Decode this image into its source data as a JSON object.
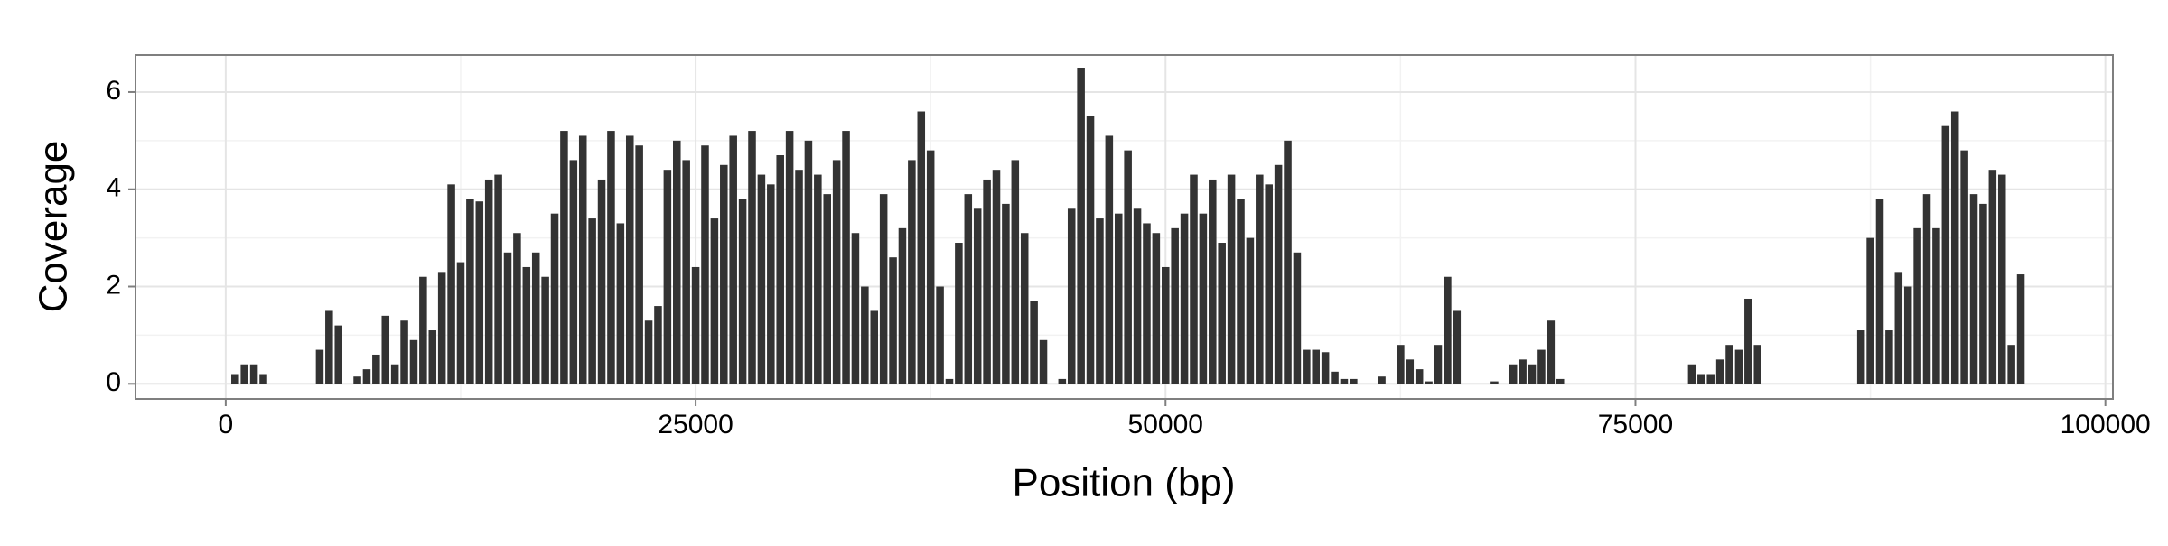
{
  "chart_data": {
    "type": "bar",
    "x_label": "Position (bp)",
    "y_label": "Coverage",
    "color": "#333333",
    "grid": true,
    "xlim": [
      -4800,
      100400
    ],
    "ylim": [
      -0.31,
      6.76
    ],
    "xticks": [
      0,
      25000,
      50000,
      75000,
      100000
    ],
    "yticks": [
      0,
      2,
      4,
      6
    ],
    "x": [
      500,
      1000,
      1500,
      2000,
      5000,
      5500,
      6000,
      7000,
      7500,
      8000,
      8500,
      9000,
      9500,
      10000,
      10500,
      11000,
      11500,
      12000,
      12500,
      13000,
      13500,
      14000,
      14500,
      15000,
      15500,
      16000,
      16500,
      17000,
      17500,
      18000,
      18500,
      19000,
      19500,
      20000,
      20500,
      21000,
      21500,
      22000,
      22500,
      23000,
      23500,
      24000,
      24500,
      25000,
      25500,
      26000,
      26500,
      27000,
      27500,
      28000,
      28500,
      29000,
      29500,
      30000,
      30500,
      31000,
      31500,
      32000,
      32500,
      33000,
      33500,
      34000,
      34500,
      35000,
      35500,
      36000,
      36500,
      37000,
      37500,
      38000,
      38500,
      39000,
      39500,
      40000,
      40500,
      41000,
      41500,
      42000,
      42500,
      43000,
      43500,
      44500,
      45000,
      45500,
      46000,
      46500,
      47000,
      47500,
      48000,
      48500,
      49000,
      49500,
      50000,
      50500,
      51000,
      51500,
      52000,
      52500,
      53000,
      53500,
      54000,
      54500,
      55000,
      55500,
      56000,
      56500,
      57000,
      57500,
      58000,
      58500,
      59000,
      59500,
      60000,
      61500,
      62500,
      63000,
      63500,
      64000,
      64500,
      65000,
      65500,
      67500,
      68500,
      69000,
      69500,
      70000,
      70500,
      71000,
      78000,
      78500,
      79000,
      79500,
      80000,
      80500,
      81000,
      81500,
      87000,
      87500,
      88000,
      88500,
      89000,
      89500,
      90000,
      90500,
      91000,
      91500,
      92000,
      92500,
      93000,
      93500,
      94000,
      94500,
      95000,
      95500
    ],
    "values": [
      0.2,
      0.4,
      0.4,
      0.2,
      0.7,
      1.5,
      1.2,
      0.15,
      0.3,
      0.6,
      1.4,
      0.4,
      1.3,
      0.9,
      2.2,
      1.1,
      2.3,
      4.1,
      2.5,
      3.8,
      3.75,
      4.2,
      4.3,
      2.7,
      3.1,
      2.4,
      2.7,
      2.2,
      3.5,
      5.2,
      4.6,
      5.1,
      3.4,
      4.2,
      5.2,
      3.3,
      5.1,
      4.9,
      1.3,
      1.6,
      4.4,
      5.0,
      4.6,
      2.4,
      4.9,
      3.4,
      4.5,
      5.1,
      3.8,
      5.2,
      4.3,
      4.1,
      4.7,
      5.2,
      4.4,
      5.0,
      4.3,
      3.9,
      4.6,
      5.2,
      3.1,
      2.0,
      1.5,
      3.9,
      2.6,
      3.2,
      4.6,
      5.6,
      4.8,
      2.0,
      0.1,
      2.9,
      3.9,
      3.6,
      4.2,
      4.4,
      3.7,
      4.6,
      3.1,
      1.7,
      0.9,
      0.1,
      3.6,
      6.5,
      5.5,
      3.4,
      5.1,
      3.5,
      4.8,
      3.6,
      3.3,
      3.1,
      2.4,
      3.2,
      3.5,
      4.3,
      3.5,
      4.2,
      2.9,
      4.3,
      3.8,
      3.0,
      4.3,
      4.1,
      4.5,
      5.0,
      2.7,
      0.7,
      0.7,
      0.65,
      0.25,
      0.1,
      0.1,
      0.15,
      0.8,
      0.5,
      0.3,
      0.05,
      0.8,
      2.2,
      1.5,
      0.05,
      0.4,
      0.5,
      0.4,
      0.7,
      1.3,
      0.1,
      0.4,
      0.2,
      0.2,
      0.5,
      0.8,
      0.7,
      1.75,
      0.8,
      1.1,
      3.0,
      3.8,
      1.1,
      2.3,
      2.0,
      3.2,
      3.9,
      3.2,
      5.3,
      5.6,
      4.8,
      3.9,
      3.7,
      4.4,
      4.3,
      0.8,
      2.25
    ]
  }
}
